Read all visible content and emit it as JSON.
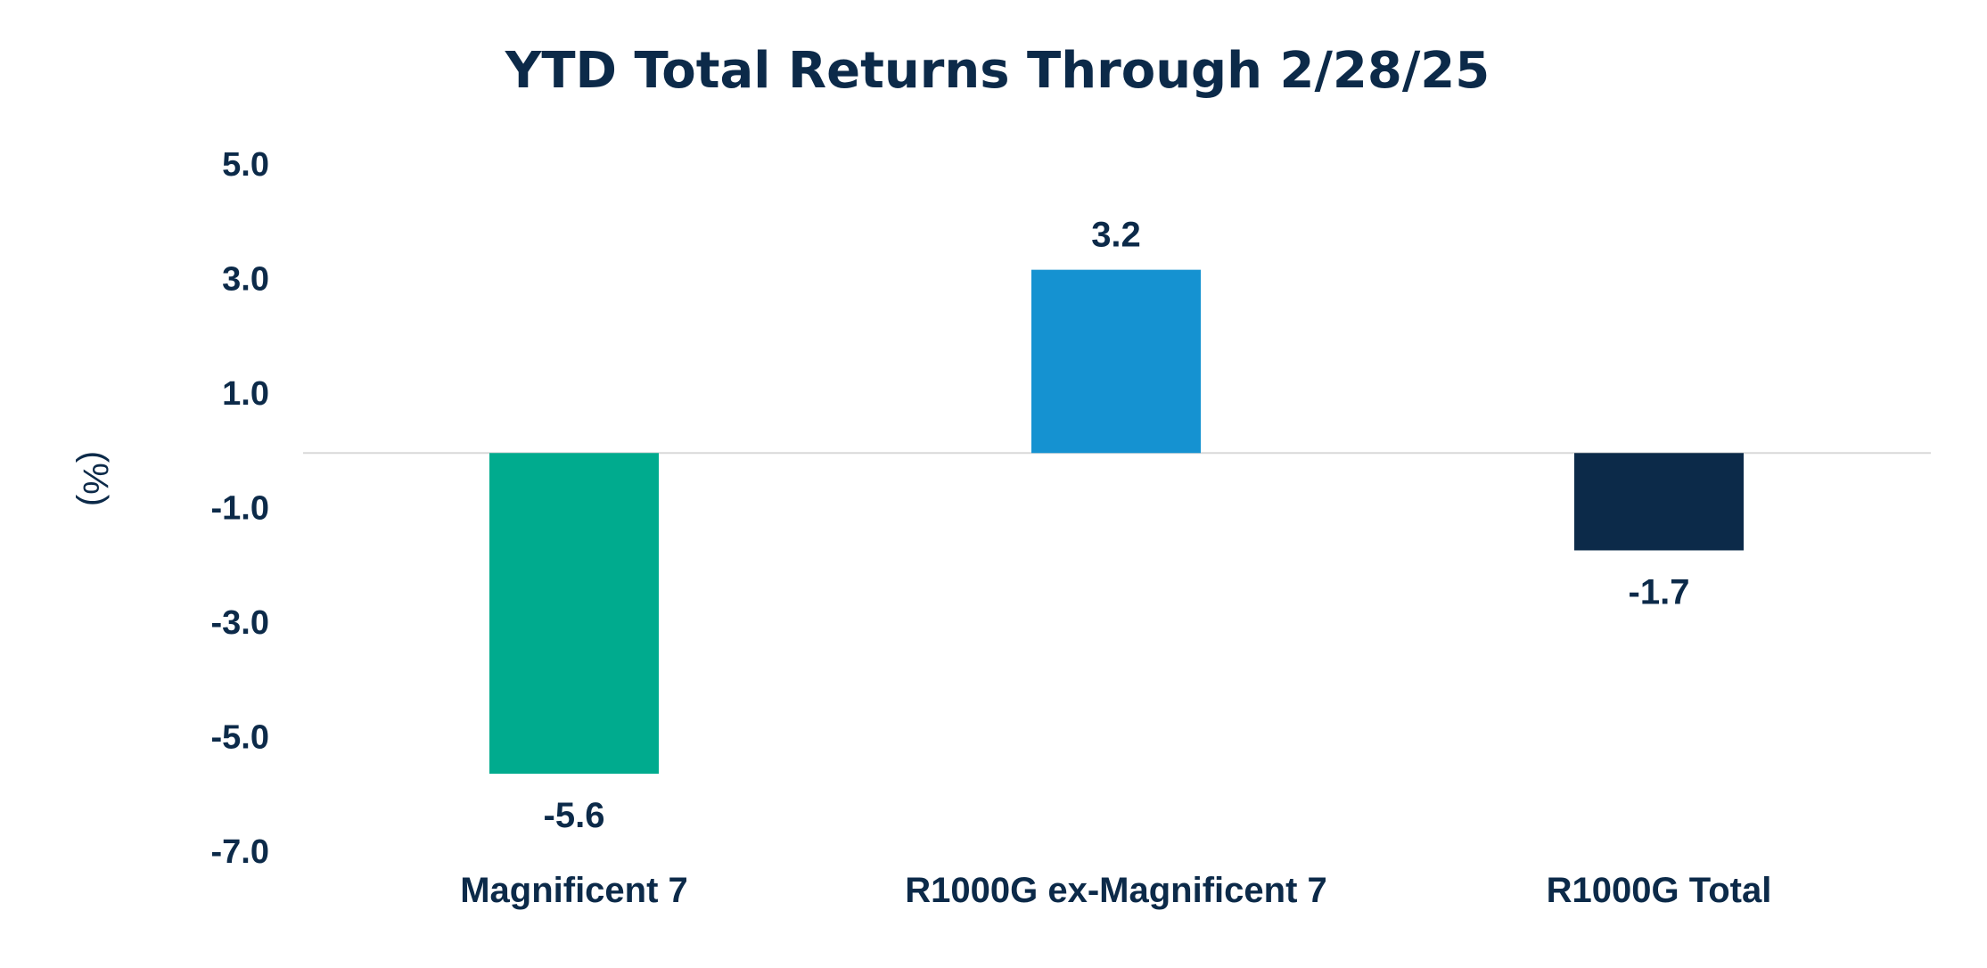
{
  "chart_data": {
    "type": "bar",
    "title": "YTD Total Returns Through 2/28/25",
    "xlabel": "",
    "ylabel": "(%)",
    "categories": [
      "Magnificent 7",
      "R1000G ex-Magnificent 7",
      "R1000G Total"
    ],
    "values": [
      -5.6,
      3.2,
      -1.7
    ],
    "value_labels": [
      "-5.6",
      "3.2",
      "-1.7"
    ],
    "bar_colors": [
      "#00ab8e",
      "#1592d1",
      "#0c2a49"
    ],
    "ylim": [
      -7.0,
      5.0
    ],
    "yticks": [
      5.0,
      3.0,
      1.0,
      -1.0,
      -3.0,
      -5.0,
      -7.0
    ],
    "ytick_labels": [
      "5.0",
      "3.0",
      "1.0",
      "-1.0",
      "-3.0",
      "-5.0",
      "-7.0"
    ],
    "grid": false,
    "legend": "none",
    "text_color": "#0c2a49",
    "zero_line_color": "#d9d9d9"
  }
}
